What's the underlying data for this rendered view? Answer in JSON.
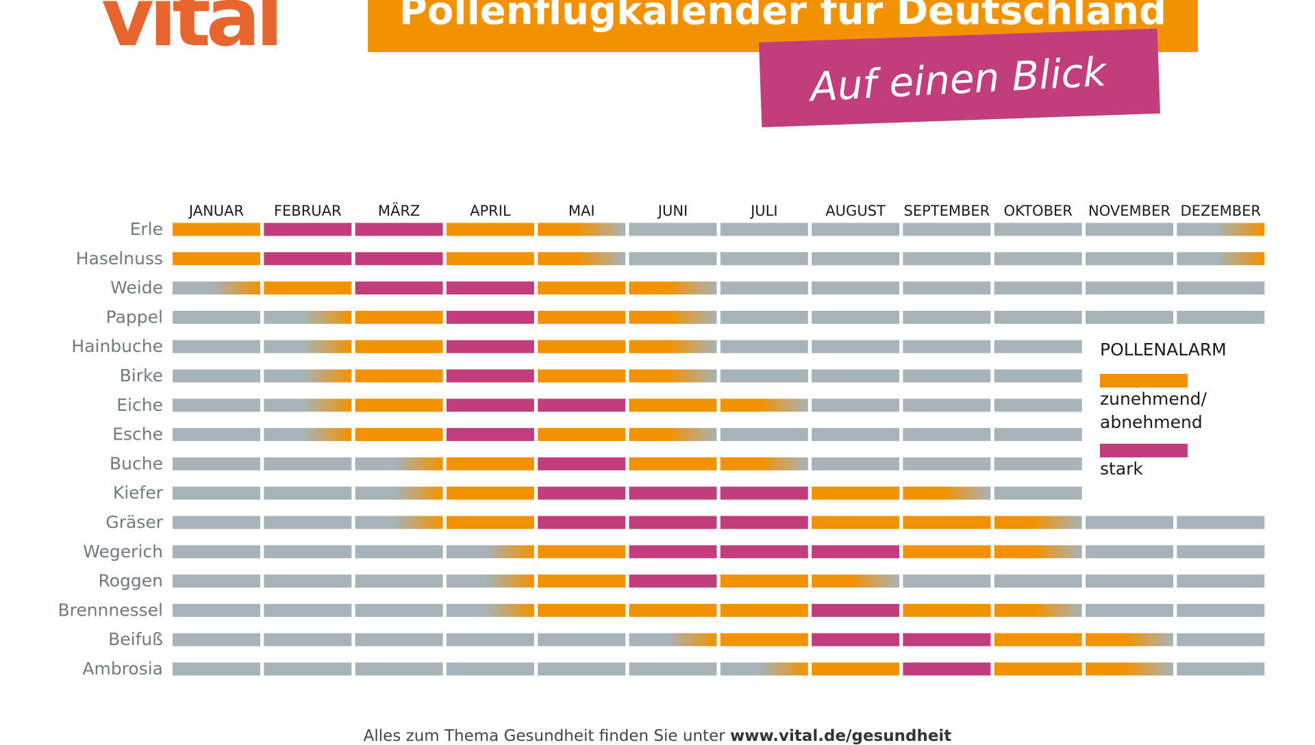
{
  "header": {
    "logo": "vital",
    "title": "Pollenflugkalender für Deutschland",
    "subtitle": "Auf einen Blick"
  },
  "legend": {
    "title": "POLLENALARM",
    "items": [
      {
        "label": "zunehmend/ abnehmend",
        "color": "#f39200"
      },
      {
        "label": "stark",
        "color": "#c23d7c"
      }
    ]
  },
  "footer": {
    "text": "Alles zum Thema Gesundheit finden Sie unter",
    "link": "www.vital.de/gesundheit"
  },
  "colors": {
    "none": "#a7b3b8",
    "moderate": "#f39200",
    "strong": "#c23d7c"
  },
  "chart_data": {
    "type": "heatmap",
    "title": "Pollenflugkalender für Deutschland",
    "levels": {
      "0": "keine",
      "1": "zunehmend/abnehmend",
      "2": "stark",
      "3": "Übergang keine → zunehmend",
      "4": "Übergang zunehmend → keine"
    },
    "months": [
      "JANUAR",
      "FEBRUAR",
      "MÄRZ",
      "APRIL",
      "MAI",
      "JUNI",
      "JULI",
      "AUGUST",
      "SEPTEMBER",
      "OKTOBER",
      "NOVEMBER",
      "DEZEMBER"
    ],
    "plants": [
      {
        "name": "Erle",
        "values": [
          1,
          2,
          2,
          1,
          4,
          0,
          0,
          0,
          0,
          0,
          0,
          3
        ]
      },
      {
        "name": "Haselnuss",
        "values": [
          1,
          2,
          2,
          1,
          4,
          0,
          0,
          0,
          0,
          0,
          0,
          3
        ]
      },
      {
        "name": "Weide",
        "values": [
          3,
          1,
          2,
          2,
          1,
          4,
          0,
          0,
          0,
          0,
          0,
          0
        ]
      },
      {
        "name": "Pappel",
        "values": [
          0,
          3,
          1,
          2,
          1,
          4,
          0,
          0,
          0,
          0,
          0,
          0
        ]
      },
      {
        "name": "Hainbuche",
        "values": [
          0,
          3,
          1,
          2,
          1,
          4,
          0,
          0,
          0,
          0,
          null,
          null
        ]
      },
      {
        "name": "Birke",
        "values": [
          0,
          3,
          1,
          2,
          1,
          4,
          0,
          0,
          0,
          0,
          null,
          null
        ]
      },
      {
        "name": "Eiche",
        "values": [
          0,
          3,
          1,
          2,
          2,
          1,
          4,
          0,
          0,
          0,
          null,
          null
        ]
      },
      {
        "name": "Esche",
        "values": [
          0,
          3,
          1,
          2,
          1,
          4,
          0,
          0,
          0,
          0,
          null,
          null
        ]
      },
      {
        "name": "Buche",
        "values": [
          0,
          0,
          3,
          1,
          2,
          1,
          4,
          0,
          0,
          0,
          null,
          null
        ]
      },
      {
        "name": "Kiefer",
        "values": [
          0,
          0,
          3,
          1,
          2,
          2,
          2,
          1,
          4,
          0,
          null,
          null
        ]
      },
      {
        "name": "Gräser",
        "values": [
          0,
          0,
          3,
          1,
          2,
          2,
          2,
          1,
          1,
          4,
          0,
          0
        ]
      },
      {
        "name": "Wegerich",
        "values": [
          0,
          0,
          0,
          3,
          1,
          2,
          2,
          2,
          1,
          4,
          0,
          0
        ]
      },
      {
        "name": "Roggen",
        "values": [
          0,
          0,
          0,
          3,
          1,
          2,
          1,
          4,
          0,
          0,
          0,
          0
        ]
      },
      {
        "name": "Brennnessel",
        "values": [
          0,
          0,
          0,
          3,
          1,
          1,
          1,
          2,
          1,
          4,
          0,
          0
        ]
      },
      {
        "name": "Beifuß",
        "values": [
          0,
          0,
          0,
          0,
          0,
          3,
          1,
          2,
          2,
          1,
          4,
          0
        ]
      },
      {
        "name": "Ambrosia",
        "values": [
          0,
          0,
          0,
          0,
          0,
          0,
          3,
          1,
          2,
          1,
          4,
          0
        ]
      }
    ]
  }
}
